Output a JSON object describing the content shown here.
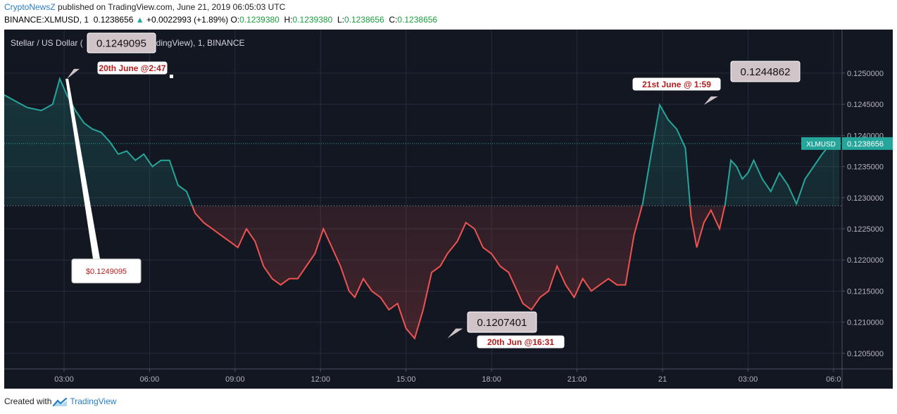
{
  "header": {
    "author": "CryptoNewsZ",
    "published_text": " published on TradingView.com, June 21, 2019 06:05:03 UTC"
  },
  "symbol_bar": {
    "symbol": "BINANCE:XLMUSD, 1",
    "last": "0.1238656",
    "change_arrow": "▲",
    "change": "+0.0022993 (+1.89%)",
    "o_label": "O:",
    "o_value": "0.1239380",
    "h_label": "H:",
    "h_value": "0.1239380",
    "l_label": "L:",
    "l_value": "0.1238656",
    "c_label": "C:",
    "c_value": "0.1238656"
  },
  "footer": {
    "created_with": "Created with",
    "brand": "TradingView"
  },
  "chart_data": {
    "type": "area",
    "title": "Stellar / US Dollar (BINANCE:XLMUSD, TradingView), 1, BINANCE",
    "title_visible": "Stellar / US Dollar (",
    "title_visible_tail": "radingView), 1, BINANCE",
    "x_unit": "hours since 00:00, June 20, 2019 (UTC)",
    "xlim": [
      0.9,
      30.3
    ],
    "ylim": [
      0.12025,
      0.1257
    ],
    "y_ticks": [
      0.1205,
      0.121,
      0.1215,
      0.122,
      0.1225,
      0.123,
      0.1235,
      0.124,
      0.1245,
      0.125
    ],
    "y_tick_labels": [
      "0.1205000",
      "0.1210000",
      "0.1215000",
      "0.1220000",
      "0.1225000",
      "0.1230000",
      "0.1235000",
      "0.1240000",
      "0.1245000",
      "0.1250000"
    ],
    "x_ticks": [
      3,
      6,
      9,
      12,
      15,
      18,
      21,
      24,
      27,
      30
    ],
    "x_tick_labels": [
      "03:00",
      "06:00",
      "09:00",
      "12:00",
      "15:00",
      "18:00",
      "21:00",
      "21",
      "03:00",
      "06:0"
    ],
    "baseline": 0.12287,
    "grid": true,
    "colors": {
      "up": "#26a69a",
      "down": "#ef5350",
      "background": "#131722",
      "grid": "#262b3b",
      "axis_text": "#b2b5be"
    },
    "series": [
      {
        "name": "XLMUSD",
        "x": [
          0.9,
          1.3,
          1.7,
          2.2,
          2.6,
          2.85,
          3.1,
          3.4,
          3.7,
          4.0,
          4.3,
          4.6,
          4.9,
          5.2,
          5.5,
          5.8,
          6.1,
          6.4,
          6.7,
          7.0,
          7.3,
          7.6,
          7.9,
          8.2,
          8.5,
          8.8,
          9.1,
          9.4,
          9.7,
          10.0,
          10.3,
          10.6,
          10.9,
          11.2,
          11.5,
          11.8,
          12.1,
          12.4,
          12.7,
          13.0,
          13.2,
          13.5,
          13.8,
          14.1,
          14.4,
          14.7,
          15.0,
          15.3,
          15.6,
          15.9,
          16.2,
          16.45,
          16.8,
          17.1,
          17.4,
          17.7,
          18.0,
          18.3,
          18.6,
          18.9,
          19.1,
          19.4,
          19.7,
          20.0,
          20.3,
          20.6,
          20.9,
          21.2,
          21.5,
          21.8,
          22.1,
          22.4,
          22.7,
          23.0,
          23.3,
          23.6,
          23.9,
          24.2,
          24.5,
          24.8,
          25.0,
          25.2,
          25.45,
          25.7,
          26.0,
          26.2,
          26.4,
          26.6,
          26.8,
          27.0,
          27.2,
          27.5,
          27.8,
          28.1,
          28.4,
          28.7,
          29.0,
          29.3,
          29.6,
          29.9,
          30.1,
          30.2
        ],
        "y": [
          0.12465,
          0.12455,
          0.12445,
          0.1244,
          0.1245,
          0.12491,
          0.12465,
          0.1244,
          0.1242,
          0.1241,
          0.12405,
          0.1239,
          0.1237,
          0.12375,
          0.1236,
          0.1237,
          0.1235,
          0.1236,
          0.1236,
          0.1232,
          0.1231,
          0.12275,
          0.1226,
          0.1225,
          0.1224,
          0.1223,
          0.1222,
          0.1225,
          0.1223,
          0.1219,
          0.1217,
          0.1216,
          0.1217,
          0.1217,
          0.1219,
          0.1221,
          0.1225,
          0.1222,
          0.1219,
          0.1215,
          0.1214,
          0.1217,
          0.1215,
          0.1214,
          0.1212,
          0.1213,
          0.1209,
          0.12074,
          0.1212,
          0.1218,
          0.1219,
          0.1221,
          0.1223,
          0.1226,
          0.1225,
          0.1222,
          0.1221,
          0.1219,
          0.1218,
          0.1215,
          0.1213,
          0.1212,
          0.1214,
          0.1215,
          0.1219,
          0.1216,
          0.1214,
          0.1217,
          0.1215,
          0.1216,
          0.1217,
          0.1216,
          0.1216,
          0.1224,
          0.1229,
          0.1237,
          0.12449,
          0.12425,
          0.1241,
          0.1238,
          0.1227,
          0.1222,
          0.1226,
          0.1228,
          0.1225,
          0.1229,
          0.1236,
          0.1235,
          0.1233,
          0.1234,
          0.1236,
          0.1233,
          0.1231,
          0.1234,
          0.1232,
          0.1229,
          0.1233,
          0.1235,
          0.1237,
          0.12387,
          0.12395,
          0.12387
        ]
      }
    ],
    "price_tag": {
      "label": "XLMUSD",
      "value": "0.1238656"
    },
    "annotations": [
      {
        "text": "0.1249095",
        "x": 3.1,
        "y": 0.12491
      },
      {
        "text": "20th June @2:47",
        "x": 2.8,
        "y": 0.12491
      },
      {
        "text": "$0.1249095",
        "x": 3.1,
        "y": 0.12491
      },
      {
        "text": "0.1244862",
        "x": 25.45,
        "y": 0.12449
      },
      {
        "text": "21st June @ 1:59",
        "x": 25.45,
        "y": 0.12449
      },
      {
        "text": "0.1207401",
        "x": 16.45,
        "y": 0.12074
      },
      {
        "text": "20th Jun @16:31",
        "x": 16.45,
        "y": 0.12074
      }
    ]
  }
}
